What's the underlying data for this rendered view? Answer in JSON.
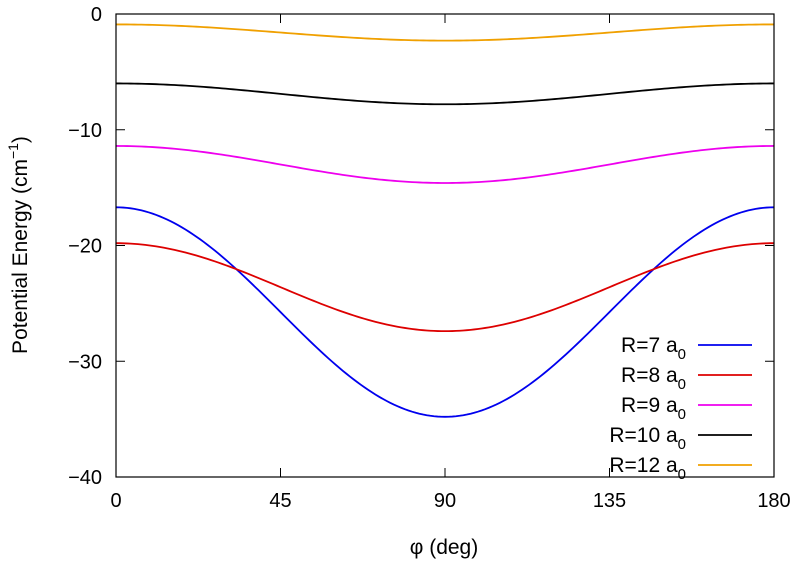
{
  "chart_data": {
    "type": "line",
    "title": "",
    "xlabel": "φ (deg)",
    "ylabel": "Potential Energy (cm",
    "ylabel_sup": "−1",
    "ylabel_close": ")",
    "xlim": [
      0,
      180
    ],
    "ylim": [
      -40,
      0
    ],
    "xticks": [
      0,
      45,
      90,
      135,
      180
    ],
    "yticks": [
      0,
      -10,
      -20,
      -30,
      -40
    ],
    "xtick_labels": [
      "0",
      "45",
      "90",
      "135",
      "180"
    ],
    "ytick_labels": [
      "0",
      "−10",
      "−20",
      "−30",
      "−40"
    ],
    "grid": false,
    "legend_position": "bottom-right",
    "model": "y = mean + amp*cos(2φ)",
    "series": [
      {
        "name": "R=7 a",
        "sub": "0",
        "color": "#0000ee",
        "at_0": -16.7,
        "at_90": -34.8
      },
      {
        "name": "R=8 a",
        "sub": "0",
        "color": "#dd0000",
        "at_0": -19.8,
        "at_90": -27.4
      },
      {
        "name": "R=9 a",
        "sub": "0",
        "color": "#ee00ee",
        "at_0": -11.4,
        "at_90": -14.6
      },
      {
        "name": "R=10 a",
        "sub": "0",
        "color": "#000000",
        "at_0": -6.0,
        "at_90": -7.8
      },
      {
        "name": "R=12 a",
        "sub": "0",
        "color": "#f0a000",
        "at_0": -0.9,
        "at_90": -2.3
      }
    ]
  }
}
